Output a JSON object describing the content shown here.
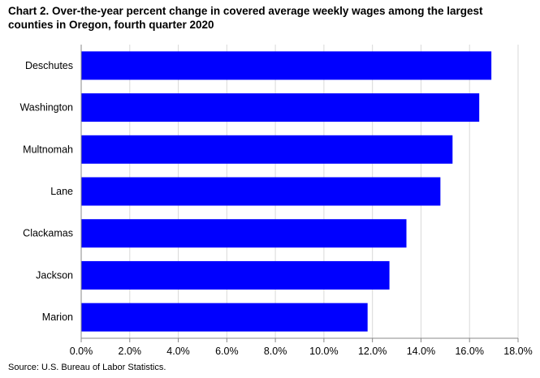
{
  "title_line1": "Chart 2. Over-the-year percent change in covered average weekly wages among the largest",
  "title_line2": "counties in Oregon, fourth quarter 2020",
  "source": "Source: U.S. Bureau of Labor Statistics.",
  "colors": {
    "bar": "#0000FF",
    "grid": "#D9D9D9",
    "axis": "#888888"
  },
  "chart_data": {
    "type": "bar",
    "orientation": "horizontal",
    "title": "Chart 2. Over-the-year percent change in covered average weekly wages among the largest counties in Oregon, fourth quarter 2020",
    "categories": [
      "Deschutes",
      "Washington",
      "Multnomah",
      "Lane",
      "Clackamas",
      "Jackson",
      "Marion"
    ],
    "values": [
      16.9,
      16.4,
      15.3,
      14.8,
      13.4,
      12.7,
      11.8
    ],
    "xlim": [
      0,
      18
    ],
    "xticks": [
      0,
      2,
      4,
      6,
      8,
      10,
      12,
      14,
      16,
      18
    ],
    "tick_labels": [
      "0.0%",
      "2.0%",
      "4.0%",
      "6.0%",
      "8.0%",
      "10.0%",
      "12.0%",
      "14.0%",
      "16.0%",
      "18.0%"
    ],
    "grid": true
  }
}
